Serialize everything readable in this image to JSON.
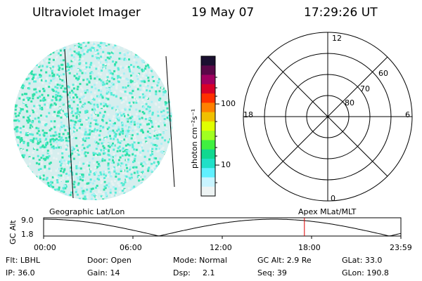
{
  "header": {
    "instrument": "Ultraviolet Imager",
    "date": "19 May 07",
    "time": "17:29:26 UT"
  },
  "colorbar": {
    "unit_label": "photon cm⁻²s⁻¹",
    "ticks": [
      "100",
      "10"
    ],
    "colors": [
      "#1a1030",
      "#5a0848",
      "#a00060",
      "#d8002a",
      "#ff3000",
      "#ff8000",
      "#f0c000",
      "#e0ff00",
      "#a0ff20",
      "#40f040",
      "#10d890",
      "#20e0c8",
      "#60f0ff",
      "#c8f4ff",
      "#eef4f4"
    ]
  },
  "polar": {
    "mlt_labels": {
      "top": "12",
      "left": "18",
      "right": "6",
      "bottom": "0"
    },
    "lat_labels": [
      "60",
      "70",
      "80"
    ]
  },
  "orbit": {
    "yaxis_label": "GC Alt",
    "y_ticks": [
      "9.0",
      "1.8"
    ],
    "left_caption": "Geographic Lat/Lon",
    "right_caption": "Apex MLat/MLT",
    "time_ticks": [
      "00:00",
      "06:00",
      "12:00",
      "18:00",
      "23:59"
    ],
    "current_time_fraction": 0.73
  },
  "info": {
    "row1": [
      "Flt: LBHL",
      "Door: Open",
      "Mode: Normal",
      "GC Alt: 2.9 Re",
      "GLat: 33.0"
    ],
    "row2": [
      "IP: 36.0",
      "Gain: 14",
      "Dsp:",
      "2.1",
      "Seq: 39",
      "GLon: 190.8"
    ]
  }
}
